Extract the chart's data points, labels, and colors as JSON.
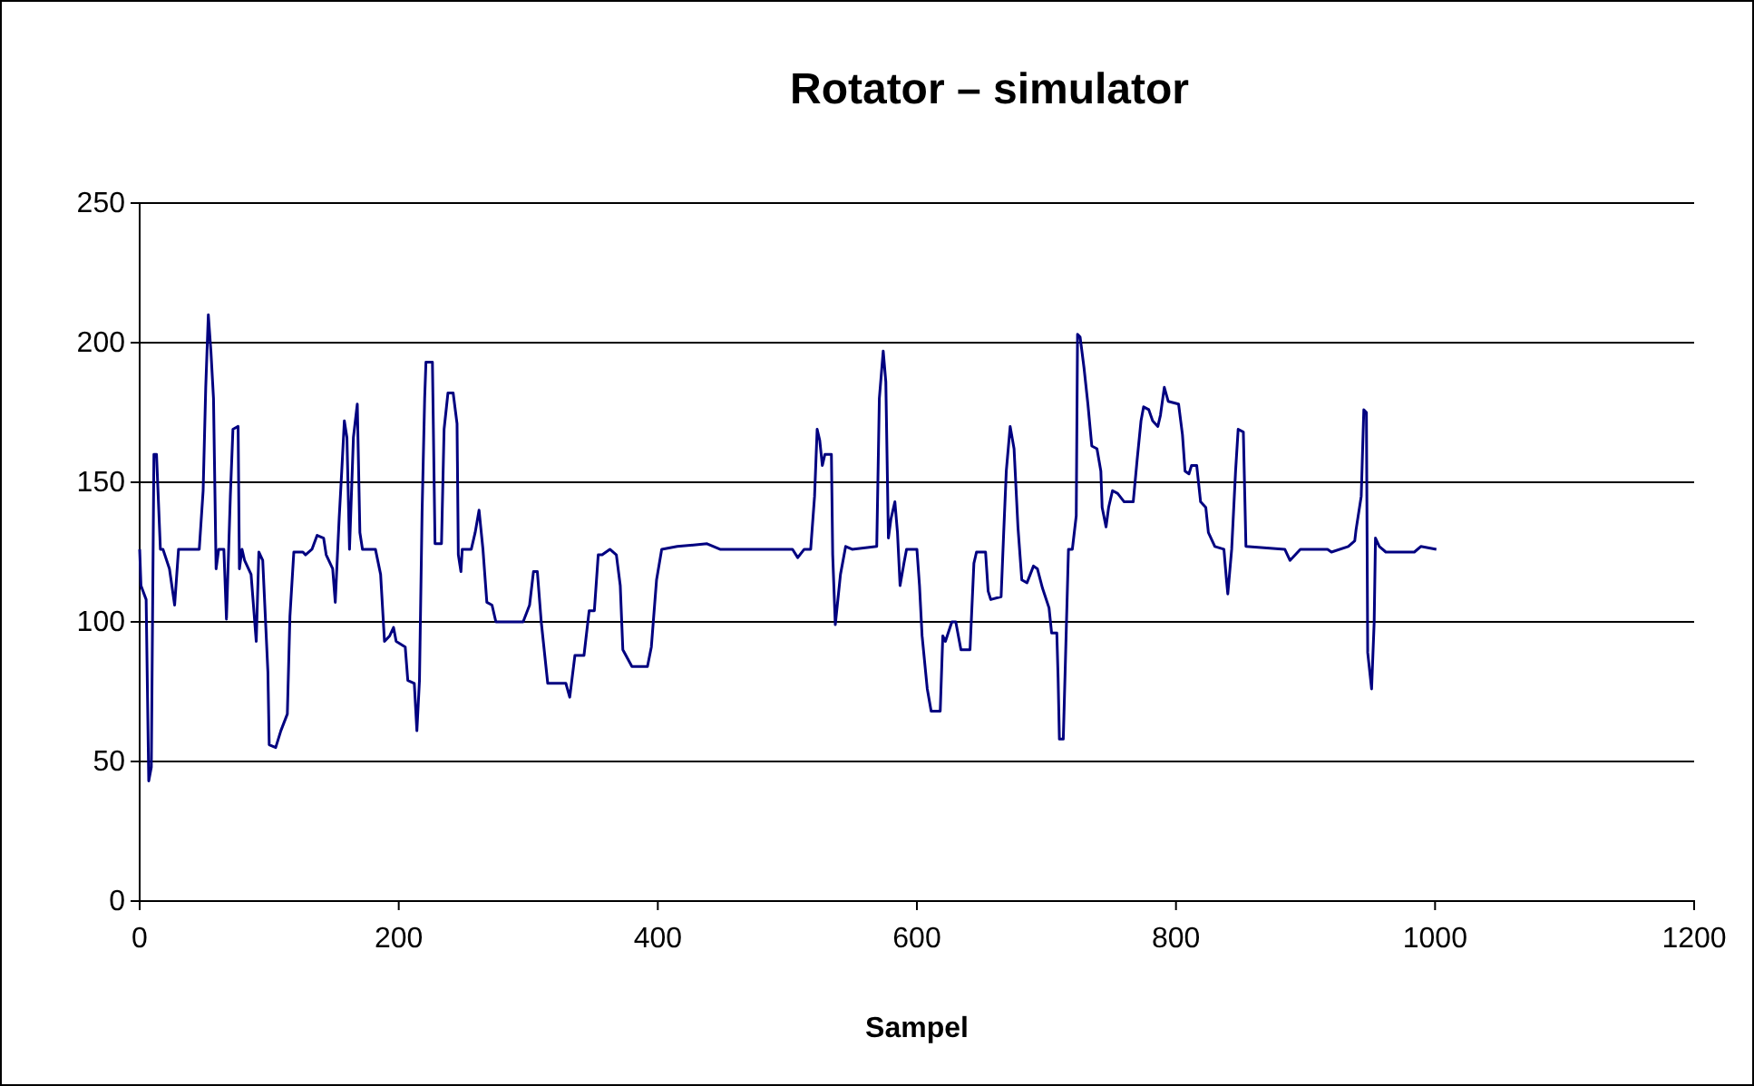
{
  "chart_data": {
    "type": "line",
    "title": "Rotator – simulator",
    "xlabel": "Sampel",
    "xlim": [
      0,
      1200
    ],
    "xticks": [
      0,
      200,
      400,
      600,
      800,
      1000,
      1200
    ],
    "ylim": [
      0,
      250
    ],
    "yticks": [
      0,
      50,
      100,
      150,
      200,
      250
    ],
    "grid": "y",
    "line_style": "solid",
    "series": [
      {
        "color": "#000080",
        "x": [
          0,
          1,
          5,
          7,
          9,
          11,
          13,
          16,
          18,
          23,
          27,
          30,
          46,
          49,
          51,
          53,
          55,
          57,
          59,
          61,
          65,
          67,
          70,
          72,
          76,
          77,
          79,
          81,
          86,
          90,
          92,
          95,
          99,
          100,
          105,
          109,
          114,
          116,
          119,
          126,
          128,
          133,
          137,
          142,
          144,
          149,
          151,
          154,
          156,
          158,
          160,
          162,
          165,
          168,
          170,
          172,
          182,
          186,
          189,
          193,
          196,
          198,
          205,
          207,
          212,
          214,
          216,
          218,
          220,
          221,
          226,
          228,
          233,
          235,
          238,
          242,
          245,
          246,
          248,
          249,
          256,
          259,
          262,
          265,
          268,
          272,
          275,
          296,
          301,
          304,
          307,
          310,
          315,
          329,
          332,
          336,
          343,
          347,
          351,
          354,
          357,
          363,
          368,
          371,
          373,
          380,
          392,
          395,
          399,
          403,
          415,
          438,
          448,
          504,
          508,
          513,
          518,
          521,
          523,
          525,
          527,
          529,
          534,
          535,
          537,
          541,
          545,
          550,
          569,
          571,
          574,
          576,
          578,
          580,
          583,
          585,
          587,
          590,
          592,
          600,
          602,
          604,
          608,
          611,
          618,
          620,
          622,
          627,
          630,
          634,
          641,
          644,
          646,
          653,
          655,
          657,
          665,
          667,
          669,
          672,
          675,
          678,
          681,
          685,
          690,
          693,
          697,
          702,
          704,
          708,
          709,
          710,
          713,
          717,
          720,
          723,
          724,
          726,
          729,
          732,
          735,
          739,
          742,
          743,
          746,
          748,
          751,
          755,
          760,
          767,
          770,
          773,
          775,
          779,
          782,
          786,
          788,
          791,
          794,
          802,
          805,
          807,
          810,
          812,
          816,
          819,
          823,
          825,
          830,
          837,
          839,
          840,
          843,
          846,
          848,
          852,
          854,
          884,
          888,
          896,
          917,
          920,
          933,
          938,
          939,
          943,
          945,
          947,
          948,
          951,
          953,
          954,
          957,
          962,
          984,
          989,
          1001
        ],
        "values": [
          126,
          113,
          108,
          43,
          48,
          160,
          160,
          126,
          126,
          119,
          106,
          126,
          126,
          147,
          184,
          210,
          197,
          180,
          119,
          126,
          126,
          101,
          145,
          169,
          170,
          119,
          126,
          122,
          117,
          93,
          125,
          122,
          82,
          56,
          55,
          61,
          67,
          102,
          125,
          125,
          124,
          126,
          131,
          130,
          124,
          119,
          107,
          137,
          154,
          172,
          166,
          126,
          166,
          178,
          132,
          126,
          126,
          117,
          93,
          95,
          98,
          93,
          91,
          79,
          78,
          61,
          79,
          139,
          180,
          193,
          193,
          128,
          128,
          169,
          182,
          182,
          171,
          124,
          118,
          126,
          126,
          132,
          140,
          126,
          107,
          106,
          100,
          100,
          106,
          118,
          118,
          100,
          78,
          78,
          73,
          88,
          88,
          104,
          104,
          124,
          124,
          126,
          124,
          113,
          90,
          84,
          84,
          91,
          115,
          126,
          127,
          128,
          126,
          126,
          123,
          126,
          126,
          145,
          169,
          165,
          156,
          160,
          160,
          124,
          99,
          117,
          127,
          126,
          127,
          180,
          197,
          186,
          130,
          137,
          143,
          132,
          113,
          121,
          126,
          126,
          113,
          95,
          76,
          68,
          68,
          95,
          93,
          100,
          100,
          90,
          90,
          121,
          125,
          125,
          111,
          108,
          109,
          132,
          154,
          170,
          162,
          134,
          115,
          114,
          120,
          119,
          112,
          105,
          96,
          96,
          80,
          58,
          58,
          126,
          126,
          138,
          203,
          202,
          191,
          178,
          163,
          162,
          154,
          141,
          134,
          141,
          147,
          146,
          143,
          143,
          158,
          172,
          177,
          176,
          172,
          170,
          174,
          184,
          179,
          178,
          167,
          154,
          153,
          156,
          156,
          143,
          141,
          132,
          127,
          126,
          115,
          110,
          126,
          154,
          169,
          168,
          127,
          126,
          122,
          126,
          126,
          125,
          127,
          129,
          133,
          145,
          176,
          175,
          89,
          76,
          100,
          130,
          127,
          125,
          125,
          127,
          126
        ]
      }
    ]
  }
}
